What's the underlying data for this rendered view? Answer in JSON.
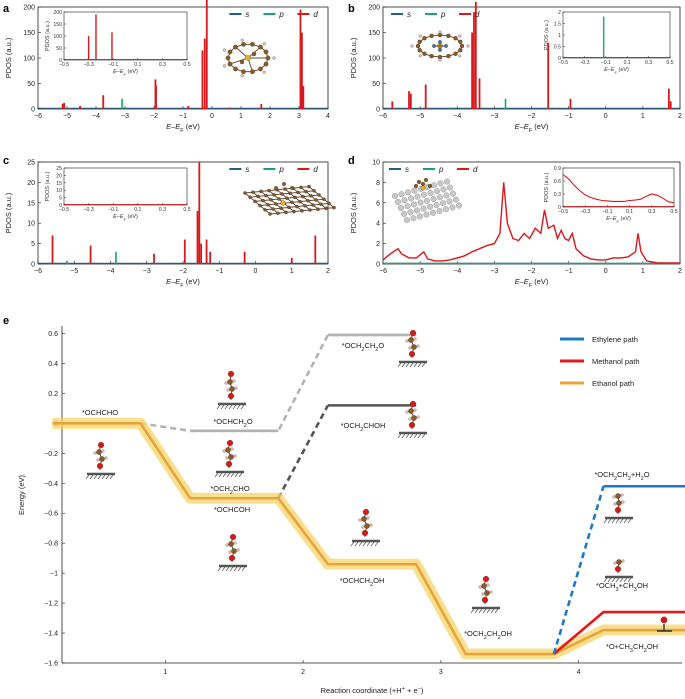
{
  "colors": {
    "s": "#1f5f8b",
    "p": "#1aa56b",
    "d": "#d7191c",
    "ethylene": "#1f78c8",
    "methanol": "#e31a1c",
    "ethanol": "#e8a33a",
    "ethanol_glow": "#f7d56b",
    "dashed_light": "#b3b3b3",
    "dashed_dark": "#555555",
    "surface": "#555555",
    "atom_c": "#8b5a2b",
    "atom_o": "#d7191c",
    "atom_h": "#f0c8c8"
  },
  "legend": {
    "s": "s",
    "p": "p",
    "d": "d"
  },
  "pdos_panels": [
    {
      "id": "a",
      "label": "a",
      "ylabel": "PDOS (a.u.)",
      "xlabel": "E–E",
      "xlim": [
        -6,
        4
      ],
      "ylim": [
        0,
        200
      ],
      "xticks": [
        -6,
        -5,
        -4,
        -3,
        -2,
        -1,
        0,
        1,
        2,
        3,
        4
      ],
      "yticks": [
        0,
        50,
        100,
        150,
        200
      ],
      "d_peaks": [
        [
          -5.15,
          10
        ],
        [
          -5.1,
          12
        ],
        [
          -4.55,
          6
        ],
        [
          -3.75,
          27
        ],
        [
          -1.95,
          58
        ],
        [
          -1.93,
          46
        ],
        [
          -0.82,
          6
        ],
        [
          -0.33,
          115
        ],
        [
          -0.25,
          138
        ],
        [
          -0.18,
          215
        ],
        [
          0.6,
          3
        ],
        [
          1.7,
          10
        ],
        [
          3.05,
          195
        ],
        [
          3.1,
          150
        ],
        [
          3.15,
          45
        ]
      ],
      "p_peaks": [
        [
          -3.1,
          20
        ]
      ],
      "legend_pos": "top-center",
      "inset": {
        "xlim": [
          -0.5,
          0.5
        ],
        "ylim": [
          0,
          200
        ],
        "xticks": [
          "-0.5",
          "-0.3",
          "-0.1",
          "0.1",
          "0.3",
          "0.5"
        ],
        "yticks": [
          0,
          50,
          100,
          150,
          200
        ],
        "ylabel": "PDOS (a.u.)",
        "xlabel": "E–E",
        "d_peaks": [
          [
            -0.3,
            100
          ],
          [
            -0.24,
            190
          ],
          [
            -0.11,
            115
          ]
        ],
        "p_peaks": []
      }
    },
    {
      "id": "b",
      "label": "b",
      "ylabel": "PDOS (a.u.)",
      "xlabel": "E–E",
      "xlim": [
        -6,
        2
      ],
      "ylim": [
        0,
        200
      ],
      "xticks": [
        -6,
        -5,
        -4,
        -3,
        -2,
        -1,
        0,
        1,
        2
      ],
      "yticks": [
        0,
        50,
        100,
        150,
        200
      ],
      "d_peaks": [
        [
          -5.75,
          15
        ],
        [
          -5.3,
          35
        ],
        [
          -5.25,
          30
        ],
        [
          -4.85,
          48
        ],
        [
          -3.6,
          150
        ],
        [
          -3.55,
          190
        ],
        [
          -3.5,
          210
        ],
        [
          -3.4,
          60
        ],
        [
          -1.55,
          130
        ],
        [
          -0.95,
          20
        ],
        [
          1.7,
          40
        ],
        [
          1.75,
          15
        ]
      ],
      "p_peaks": [
        [
          -2.7,
          20
        ],
        [
          -4.2,
          3
        ]
      ],
      "legend_pos": "top-left",
      "inset": {
        "xlim": [
          -0.5,
          0.5
        ],
        "ylim": [
          0,
          2
        ],
        "xticks": [
          "-0.5",
          "-0.3",
          "-0.1",
          "0.1",
          "0.3",
          "0.5"
        ],
        "yticks": [
          0,
          0.5,
          1,
          1.5,
          2
        ],
        "ylabel": "PDOS (a.u.)",
        "xlabel": "E–E",
        "d_peaks": [],
        "p_peaks": [
          [
            -0.12,
            1.8
          ]
        ]
      }
    },
    {
      "id": "c",
      "label": "c",
      "ylabel": "PDOS (a.u.)",
      "xlabel": "E–E",
      "xlim": [
        -6,
        2
      ],
      "ylim": [
        0,
        25
      ],
      "xticks": [
        -6,
        -5,
        -4,
        -3,
        -2,
        -1,
        0,
        1,
        2
      ],
      "yticks": [
        0,
        5,
        10,
        15,
        20,
        25
      ],
      "d_peaks": [
        [
          -5.6,
          7
        ],
        [
          -4.55,
          4.5
        ],
        [
          -2.8,
          2.5
        ],
        [
          -1.95,
          6
        ],
        [
          -1.6,
          13
        ],
        [
          -1.55,
          25
        ],
        [
          -1.5,
          5
        ],
        [
          -1.35,
          6
        ],
        [
          -1.25,
          3
        ],
        [
          -0.3,
          3
        ],
        [
          1.0,
          1.5
        ],
        [
          1.65,
          7
        ]
      ],
      "p_peaks": [
        [
          -5.2,
          0.8
        ],
        [
          -3.85,
          3
        ]
      ],
      "legend_pos": "top-center",
      "inset": {
        "xlim": [
          -0.5,
          0.5
        ],
        "ylim": [
          0,
          25
        ],
        "xticks": [
          "-0.5",
          "-0.3",
          "-0.1",
          "0.1",
          "0.3",
          "0.5"
        ],
        "yticks": [
          0,
          5,
          10,
          15,
          20,
          25
        ],
        "ylabel": "PDOS (a.u.)",
        "xlabel": "E–E",
        "d_peaks": [],
        "p_peaks": []
      }
    },
    {
      "id": "d",
      "label": "d",
      "ylabel": "PDOS (a.u.)",
      "xlabel": "E–E",
      "xlim": [
        -6,
        2
      ],
      "ylim": [
        0,
        10
      ],
      "xticks": [
        -6,
        -5,
        -4,
        -3,
        -2,
        -1,
        0,
        1,
        2
      ],
      "yticks": [
        0,
        2,
        4,
        6,
        8,
        10
      ],
      "d_curve": [
        [
          -6,
          0.4
        ],
        [
          -5.8,
          1.0
        ],
        [
          -5.6,
          1.5
        ],
        [
          -5.5,
          1.0
        ],
        [
          -5.3,
          0.6
        ],
        [
          -5.1,
          0.6
        ],
        [
          -4.9,
          1.2
        ],
        [
          -4.8,
          0.5
        ],
        [
          -4.6,
          0.3
        ],
        [
          -4.4,
          0.3
        ],
        [
          -4.2,
          0.4
        ],
        [
          -4.0,
          0.6
        ],
        [
          -3.8,
          0.8
        ],
        [
          -3.6,
          1.2
        ],
        [
          -3.4,
          1.5
        ],
        [
          -3.2,
          1.8
        ],
        [
          -3.0,
          2.0
        ],
        [
          -2.85,
          3.0
        ],
        [
          -2.75,
          8.0
        ],
        [
          -2.65,
          4.0
        ],
        [
          -2.5,
          2.5
        ],
        [
          -2.35,
          2.3
        ],
        [
          -2.2,
          3.0
        ],
        [
          -2.05,
          2.5
        ],
        [
          -1.9,
          3.5
        ],
        [
          -1.75,
          3.0
        ],
        [
          -1.65,
          5.3
        ],
        [
          -1.55,
          3.5
        ],
        [
          -1.4,
          3.8
        ],
        [
          -1.3,
          2.5
        ],
        [
          -1.2,
          3.3
        ],
        [
          -1.1,
          2.5
        ],
        [
          -1.0,
          2.3
        ],
        [
          -0.9,
          3.0
        ],
        [
          -0.8,
          1.5
        ],
        [
          -0.6,
          0.8
        ],
        [
          -0.4,
          0.5
        ],
        [
          -0.2,
          0.4
        ],
        [
          0.0,
          0.4
        ],
        [
          0.2,
          0.6
        ],
        [
          0.4,
          0.6
        ],
        [
          0.6,
          0.7
        ],
        [
          0.8,
          1.2
        ],
        [
          0.87,
          3.0
        ],
        [
          0.95,
          1.2
        ],
        [
          1.1,
          0.3
        ],
        [
          1.4,
          0.1
        ],
        [
          1.7,
          0.1
        ],
        [
          2.0,
          0.1
        ]
      ],
      "p_baseline": 0.05,
      "legend_pos": "top-left",
      "inset": {
        "xlim": [
          -0.5,
          0.5
        ],
        "ylim": [
          0,
          0.9
        ],
        "xticks": [
          "-0.5",
          "-0.3",
          "-0.1",
          "0.1",
          "0.3",
          "0.5"
        ],
        "yticks": [
          0,
          0.3,
          0.6,
          0.9
        ],
        "ylabel": "PDOS (a.u.)",
        "xlabel": "E–E",
        "d_curve": [
          [
            -0.5,
            0.75
          ],
          [
            -0.45,
            0.65
          ],
          [
            -0.4,
            0.5
          ],
          [
            -0.35,
            0.38
          ],
          [
            -0.3,
            0.28
          ],
          [
            -0.25,
            0.22
          ],
          [
            -0.2,
            0.18
          ],
          [
            -0.15,
            0.15
          ],
          [
            -0.1,
            0.14
          ],
          [
            -0.05,
            0.13
          ],
          [
            0.0,
            0.13
          ],
          [
            0.05,
            0.13
          ],
          [
            0.1,
            0.15
          ],
          [
            0.15,
            0.16
          ],
          [
            0.2,
            0.18
          ],
          [
            0.25,
            0.25
          ],
          [
            0.3,
            0.3
          ],
          [
            0.35,
            0.27
          ],
          [
            0.4,
            0.2
          ],
          [
            0.45,
            0.12
          ],
          [
            0.5,
            0.1
          ]
        ]
      }
    }
  ],
  "panel_e": {
    "label": "e",
    "ylabel": "Energy (eV)",
    "xlabel": "Reaction coordinate (+H",
    "xlabel_mid": " + e",
    "xlabel_end": ")",
    "xlim": [
      0.25,
      4.75
    ],
    "ylim": [
      -1.6,
      0.65
    ],
    "xticks": [
      "1",
      "2",
      "3",
      "4"
    ],
    "yticks": [
      "0.6",
      "0.4",
      "0.2",
      "0",
      "-0.2",
      "-0.4",
      "-0.6",
      "-0.8",
      "-1",
      "-1.2",
      "-1.4",
      "-1.6"
    ],
    "legend": {
      "ethylene": "Ethylene path",
      "methanol": "Methanol path",
      "ethanol": "Ethanol path"
    },
    "state_labels": [
      "*OCHCHO",
      "*OCHCH",
      "*OCH",
      "*OCH",
      "*OCH",
      "*OCHCOH",
      "*OCHCH",
      "*OCH",
      "*OCH",
      "*OCH",
      "*O+CH"
    ],
    "chart_data": {
      "type": "line",
      "title": "",
      "ethanol_path": {
        "x": [
          0.5,
          1.5,
          2.5,
          3.5,
          4.5
        ],
        "y": [
          0,
          -0.5,
          -0.94,
          -1.54,
          -1.38
        ]
      },
      "methanol_branch": {
        "x": [
          3.5,
          4.5
        ],
        "y": [
          -1.54,
          -1.26
        ]
      },
      "ethylene_branch": {
        "x": [
          3.5,
          4.5
        ],
        "y": [
          -1.54,
          -0.42
        ]
      },
      "dashed_branches": [
        {
          "x": [
            0.5,
            1.5,
            2.5
          ],
          "y": [
            0,
            -0.05,
            0.59
          ],
          "style": "light"
        },
        {
          "x": [
            1.5,
            2.5
          ],
          "y": [
            -0.5,
            0.12
          ],
          "style": "dark"
        }
      ]
    }
  }
}
